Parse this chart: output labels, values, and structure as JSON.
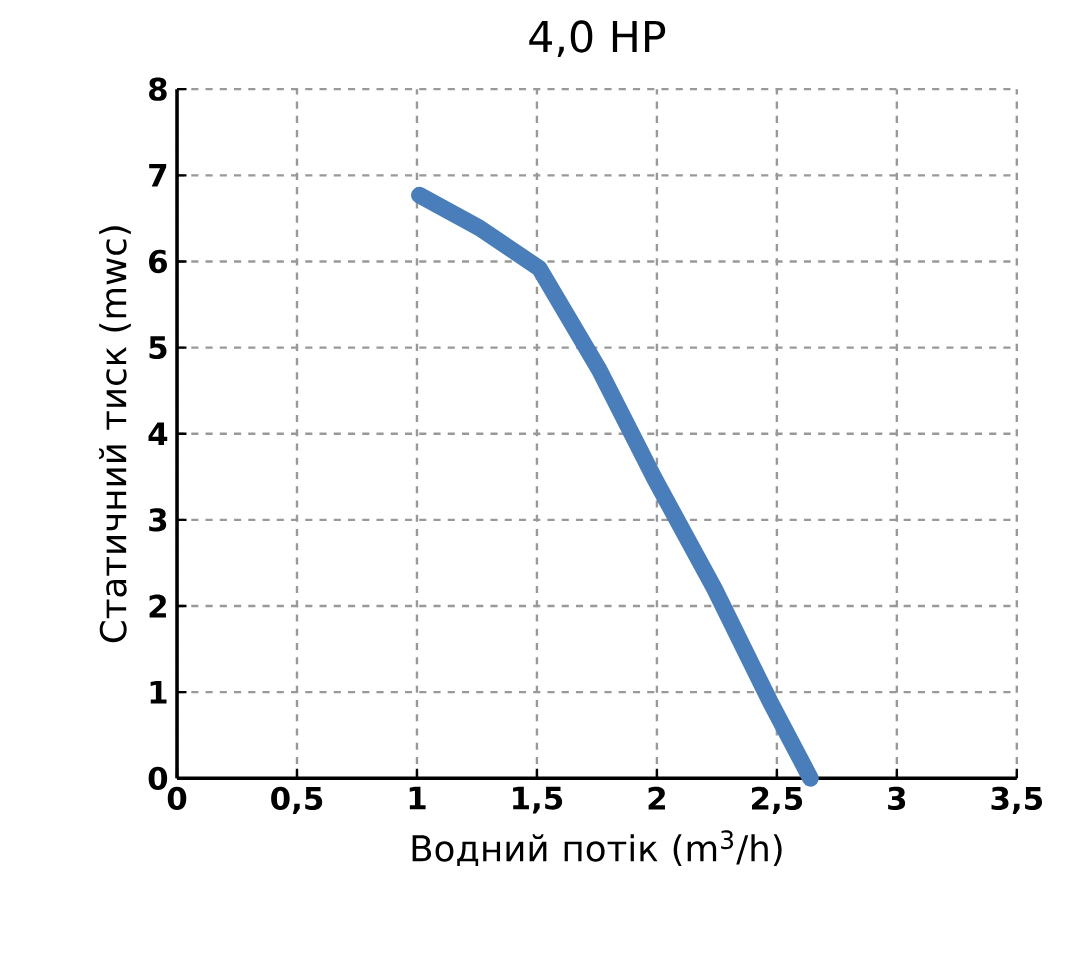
{
  "chart_data": {
    "type": "line",
    "title": "4,0 HP",
    "xlabel": "Водний потік (m$^{3}$/h)",
    "ylabel": "Статичний тиск (mwc)",
    "xlim": [
      0,
      3.5
    ],
    "ylim": [
      0,
      8
    ],
    "xticks": [
      0,
      {
        "value": 0.5,
        "label": "0,5"
      },
      1,
      {
        "value": 1.5,
        "label": "1,5"
      },
      2,
      {
        "value": 2.5,
        "label": "2,5"
      },
      3,
      {
        "value": 3.5,
        "label": "3,5"
      }
    ],
    "yticks": [
      0,
      1,
      2,
      3,
      4,
      5,
      6,
      7,
      8
    ],
    "grid": true,
    "series": [
      {
        "color": "#4a7ebb",
        "x": [
          1.01,
          1.26,
          1.51,
          1.76,
          1.99,
          2.24,
          2.47,
          2.64
        ],
        "values": [
          6.77,
          6.39,
          5.92,
          4.74,
          3.48,
          2.2,
          0.9,
          0
        ]
      }
    ]
  }
}
